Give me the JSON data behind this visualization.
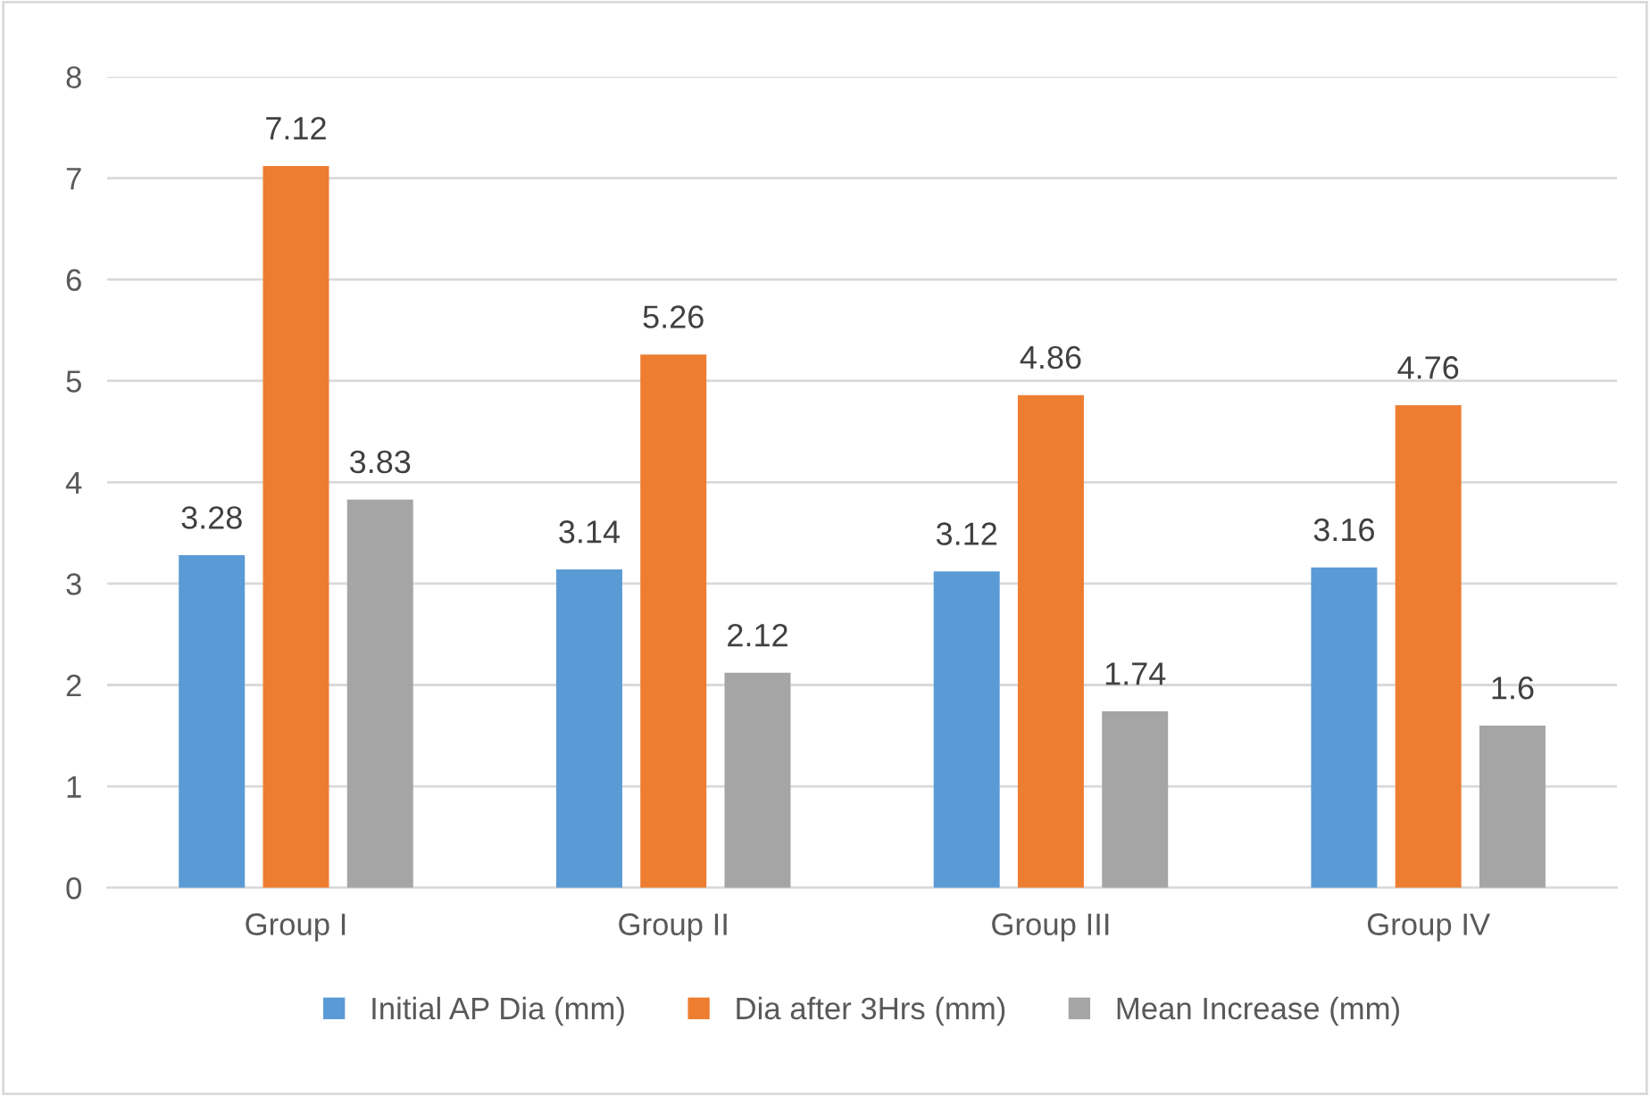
{
  "chart_data": {
    "type": "bar",
    "categories": [
      "Group I",
      "Group II",
      "Group III",
      "Group IV"
    ],
    "series": [
      {
        "name": "Initial AP Dia (mm)",
        "color": "#5b9bd5",
        "values": [
          3.28,
          3.14,
          3.12,
          3.16
        ]
      },
      {
        "name": "Dia after 3Hrs (mm)",
        "color": "#ed7d31",
        "values": [
          7.12,
          5.26,
          4.86,
          4.76
        ]
      },
      {
        "name": "Mean Increase (mm)",
        "color": "#a5a5a5",
        "values": [
          3.83,
          2.12,
          1.74,
          1.6
        ]
      }
    ],
    "ylim": [
      0,
      8
    ],
    "yticks": [
      0,
      1,
      2,
      3,
      4,
      5,
      6,
      7,
      8
    ],
    "grid": "y",
    "legend": "bottom",
    "data_labels": true
  }
}
